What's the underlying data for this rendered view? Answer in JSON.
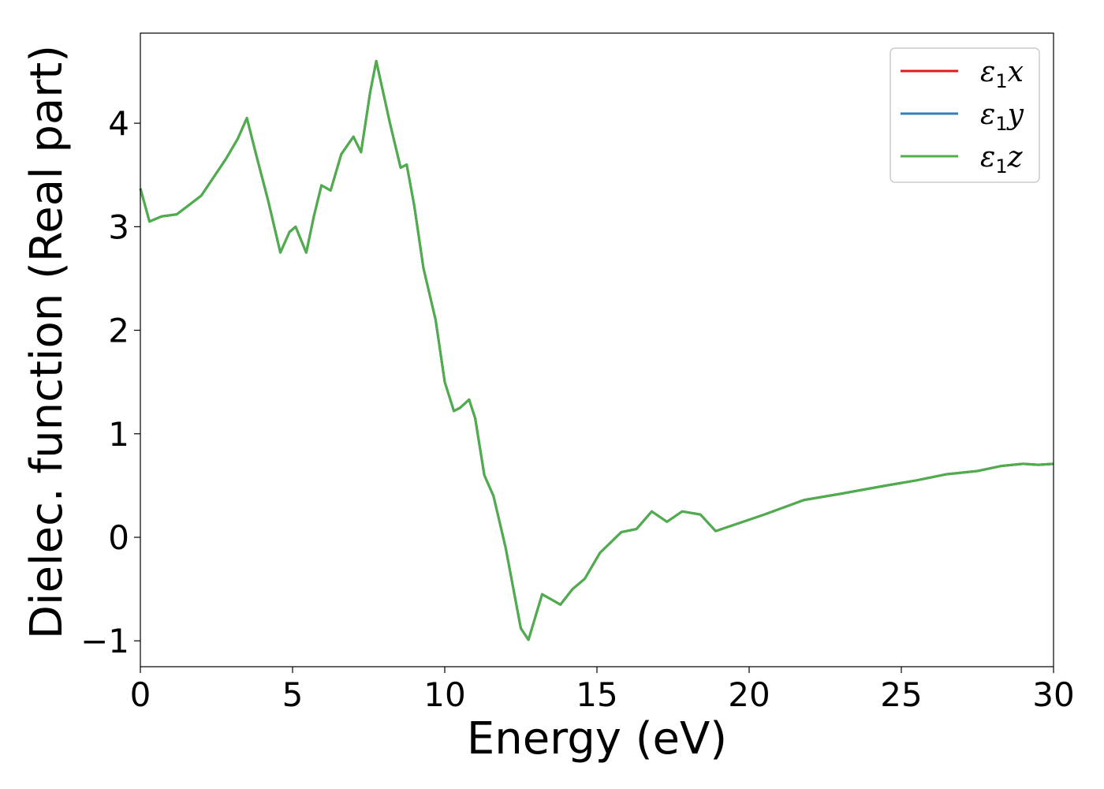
{
  "chart_data": {
    "type": "line",
    "title": "",
    "xlabel": "Energy (eV)",
    "ylabel": "Dielec. function (Real part)",
    "xlim": [
      0,
      30
    ],
    "ylim": [
      -1.25,
      4.87
    ],
    "xticks": [
      0,
      5,
      10,
      15,
      20,
      25,
      30
    ],
    "xtick_labels": [
      "0",
      "5",
      "10",
      "15",
      "20",
      "25",
      "30"
    ],
    "yticks": [
      -1,
      0,
      1,
      2,
      3,
      4
    ],
    "ytick_labels": [
      "−1",
      "0",
      "1",
      "2",
      "3",
      "4"
    ],
    "grid": false,
    "legend_position": "top-right",
    "series": [
      {
        "name": "ε1x",
        "color": "#e41a1c",
        "x": [
          0,
          0.3,
          0.7,
          1.2,
          2,
          2.8,
          3.2,
          3.5,
          3.8,
          4.2,
          4.6,
          4.9,
          5.1,
          5.45,
          5.7,
          5.95,
          6.25,
          6.6,
          7.0,
          7.25,
          7.55,
          7.75,
          8.2,
          8.55,
          8.75,
          9.0,
          9.3,
          9.7,
          10.0,
          10.3,
          10.5,
          10.8,
          11.0,
          11.3,
          11.6,
          12.0,
          12.5,
          12.75,
          13.2,
          13.8,
          14.2,
          14.6,
          15.1,
          15.8,
          16.3,
          16.8,
          17.3,
          17.8,
          18.4,
          18.9,
          19.5,
          20.5,
          21.8,
          23.0,
          24.5,
          25.5,
          26.5,
          27.5,
          28.3,
          29.0,
          29.5,
          30.0
        ],
        "y": [
          3.37,
          3.05,
          3.1,
          3.12,
          3.3,
          3.65,
          3.85,
          4.05,
          3.7,
          3.25,
          2.75,
          2.95,
          3.0,
          2.75,
          3.1,
          3.4,
          3.35,
          3.7,
          3.87,
          3.72,
          4.3,
          4.6,
          4.0,
          3.57,
          3.6,
          3.2,
          2.6,
          2.1,
          1.5,
          1.22,
          1.25,
          1.33,
          1.15,
          0.6,
          0.4,
          -0.1,
          -0.88,
          -0.99,
          -0.55,
          -0.65,
          -0.5,
          -0.4,
          -0.15,
          0.05,
          0.08,
          0.25,
          0.15,
          0.25,
          0.22,
          0.06,
          0.12,
          0.22,
          0.36,
          0.42,
          0.5,
          0.55,
          0.61,
          0.64,
          0.69,
          0.71,
          0.7,
          0.71
        ]
      },
      {
        "name": "ε1y",
        "color": "#377eb8",
        "x": [
          0,
          0.3,
          0.7,
          1.2,
          2,
          2.8,
          3.2,
          3.5,
          3.8,
          4.2,
          4.6,
          4.9,
          5.1,
          5.45,
          5.7,
          5.95,
          6.25,
          6.6,
          7.0,
          7.25,
          7.55,
          7.75,
          8.2,
          8.55,
          8.75,
          9.0,
          9.3,
          9.7,
          10.0,
          10.3,
          10.5,
          10.8,
          11.0,
          11.3,
          11.6,
          12.0,
          12.5,
          12.75,
          13.2,
          13.8,
          14.2,
          14.6,
          15.1,
          15.8,
          16.3,
          16.8,
          17.3,
          17.8,
          18.4,
          18.9,
          19.5,
          20.5,
          21.8,
          23.0,
          24.5,
          25.5,
          26.5,
          27.5,
          28.3,
          29.0,
          29.5,
          30.0
        ],
        "y": [
          3.37,
          3.05,
          3.1,
          3.12,
          3.3,
          3.65,
          3.85,
          4.05,
          3.7,
          3.25,
          2.75,
          2.95,
          3.0,
          2.75,
          3.1,
          3.4,
          3.35,
          3.7,
          3.87,
          3.72,
          4.3,
          4.6,
          4.0,
          3.57,
          3.6,
          3.2,
          2.6,
          2.1,
          1.5,
          1.22,
          1.25,
          1.33,
          1.15,
          0.6,
          0.4,
          -0.1,
          -0.88,
          -0.99,
          -0.55,
          -0.65,
          -0.5,
          -0.4,
          -0.15,
          0.05,
          0.08,
          0.25,
          0.15,
          0.25,
          0.22,
          0.06,
          0.12,
          0.22,
          0.36,
          0.42,
          0.5,
          0.55,
          0.61,
          0.64,
          0.69,
          0.71,
          0.7,
          0.71
        ]
      },
      {
        "name": "ε1z",
        "color": "#4daf4a",
        "x": [
          0,
          0.3,
          0.7,
          1.2,
          2,
          2.8,
          3.2,
          3.5,
          3.8,
          4.2,
          4.6,
          4.9,
          5.1,
          5.45,
          5.7,
          5.95,
          6.25,
          6.6,
          7.0,
          7.25,
          7.55,
          7.75,
          8.2,
          8.55,
          8.75,
          9.0,
          9.3,
          9.7,
          10.0,
          10.3,
          10.5,
          10.8,
          11.0,
          11.3,
          11.6,
          12.0,
          12.5,
          12.75,
          13.2,
          13.8,
          14.2,
          14.6,
          15.1,
          15.8,
          16.3,
          16.8,
          17.3,
          17.8,
          18.4,
          18.9,
          19.5,
          20.5,
          21.8,
          23.0,
          24.5,
          25.5,
          26.5,
          27.5,
          28.3,
          29.0,
          29.5,
          30.0
        ],
        "y": [
          3.37,
          3.05,
          3.1,
          3.12,
          3.3,
          3.65,
          3.85,
          4.05,
          3.7,
          3.25,
          2.75,
          2.95,
          3.0,
          2.75,
          3.1,
          3.4,
          3.35,
          3.7,
          3.87,
          3.72,
          4.3,
          4.6,
          4.0,
          3.57,
          3.6,
          3.2,
          2.6,
          2.1,
          1.5,
          1.22,
          1.25,
          1.33,
          1.15,
          0.6,
          0.4,
          -0.1,
          -0.88,
          -0.99,
          -0.55,
          -0.65,
          -0.5,
          -0.4,
          -0.15,
          0.05,
          0.08,
          0.25,
          0.15,
          0.25,
          0.22,
          0.06,
          0.12,
          0.22,
          0.36,
          0.42,
          0.5,
          0.55,
          0.61,
          0.64,
          0.69,
          0.71,
          0.7,
          0.71
        ]
      }
    ]
  },
  "legend": {
    "items": [
      {
        "symbol": "ε",
        "sub": "1",
        "suffix": "x",
        "color": "#e41a1c"
      },
      {
        "symbol": "ε",
        "sub": "1",
        "suffix": "y",
        "color": "#377eb8"
      },
      {
        "symbol": "ε",
        "sub": "1",
        "suffix": "z",
        "color": "#4daf4a"
      }
    ]
  }
}
